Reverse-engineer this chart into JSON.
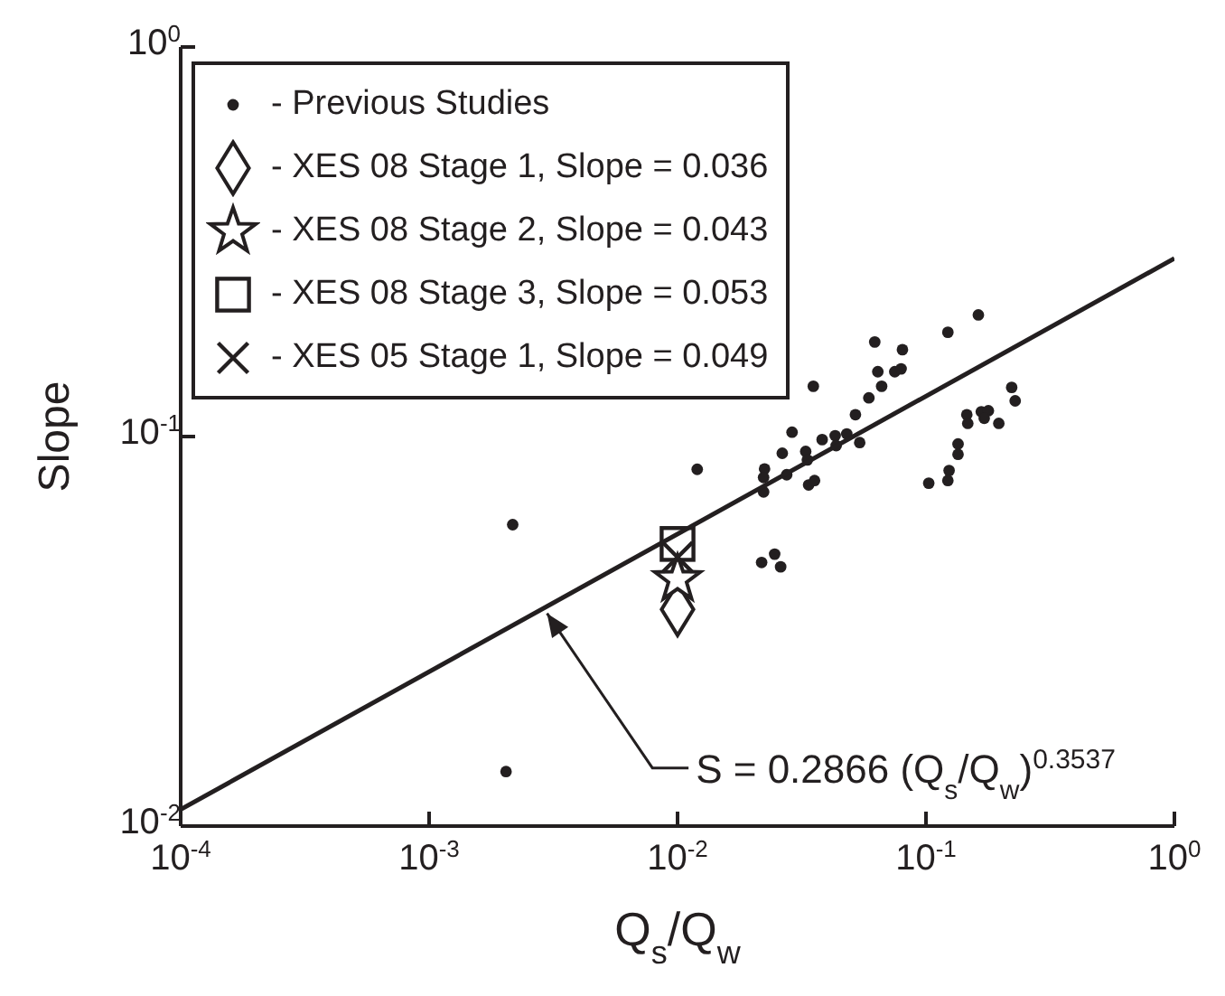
{
  "chart_data": {
    "type": "scatter",
    "xlabel": "Q$_{s}$/Q$_{w}$",
    "ylabel": "Slope",
    "log": "xy",
    "grid": false,
    "legend": "top left",
    "xlim": [
      0.0001,
      1
    ],
    "ylim": [
      0.01,
      1
    ],
    "xticks": [
      {
        "value": 0.0001,
        "label": "10$^{-4}$"
      },
      {
        "value": 0.001,
        "label": "10$^{-3}$"
      },
      {
        "value": 0.01,
        "label": "10$^{-2}$"
      },
      {
        "value": 0.1,
        "label": "10$^{-1}$"
      },
      {
        "value": 1,
        "label": "10$^{0}$"
      }
    ],
    "yticks": [
      {
        "value": 0.01,
        "label": "10$^{-2}$"
      },
      {
        "value": 0.1,
        "label": "10$^{-1}$"
      },
      {
        "value": 1,
        "label": "10$^{0}$"
      }
    ],
    "annotations": [
      {
        "text": "S = 0.2866 (Q$_{s}$/Q$_{w}$)$^{0.3537}$",
        "x": 0.0029,
        "y": 0.0361
      }
    ],
    "series": [
      {
        "name": "- Previous Studies",
        "marker": "circle",
        "color": "#231f20",
        "x": [
          0.00217,
          0.00204,
          0.012,
          0.0218,
          0.0246,
          0.026,
          0.0224,
          0.0222,
          0.0222,
          0.0264,
          0.0275,
          0.0289,
          0.0328,
          0.0333,
          0.0337,
          0.0356,
          0.0352,
          0.0382,
          0.0431,
          0.0435,
          0.048,
          0.0541,
          0.052,
          0.0589,
          0.0663,
          0.064,
          0.0749,
          0.0794,
          0.0622,
          0.0804,
          0.1225,
          0.1625,
          0.2213,
          0.2286,
          0.146,
          0.1473,
          0.167,
          0.1783,
          0.1716,
          0.1964,
          0.1346,
          0.1346,
          0.1239,
          0.1225,
          0.1026
        ],
        "values": [
          0.0594,
          0.0138,
          0.0824,
          0.0475,
          0.0499,
          0.0463,
          0.0826,
          0.0785,
          0.0721,
          0.0906,
          0.0798,
          0.1026,
          0.0916,
          0.0871,
          0.0751,
          0.0771,
          0.1346,
          0.0982,
          0.1005,
          0.0948,
          0.1016,
          0.0965,
          0.1138,
          0.1257,
          0.1346,
          0.1467,
          0.1467,
          0.1492,
          0.1749,
          0.1671,
          0.1852,
          0.2052,
          0.1337,
          0.1235,
          0.1138,
          0.1081,
          0.1158,
          0.1165,
          0.1114,
          0.1081,
          0.0957,
          0.09,
          0.0818,
          0.0771,
          0.0759
        ]
      },
      {
        "name": "- XES 08 Stage 1, Slope = 0.036",
        "marker": "diamond",
        "color": "#231f20",
        "x": [
          0.01
        ],
        "values": [
          0.036
        ]
      },
      {
        "name": "- XES 08 Stage 2, Slope = 0.043",
        "marker": "star",
        "color": "#231f20",
        "x": [
          0.01
        ],
        "values": [
          0.043
        ]
      },
      {
        "name": "- XES 08 Stage 3, Slope = 0.053",
        "marker": "square",
        "color": "#231f20",
        "x": [
          0.01
        ],
        "values": [
          0.053
        ]
      },
      {
        "name": "- XES 05 Stage 1, Slope = 0.049",
        "marker": "cross",
        "color": "#231f20",
        "x": [
          0.01
        ],
        "values": [
          0.049
        ]
      },
      {
        "type": "line",
        "marker": "none",
        "line_style": "solid",
        "color": "#231f20",
        "x": [
          0.0001,
          1
        ],
        "values": [
          0.01103,
          0.2866
        ]
      }
    ]
  }
}
